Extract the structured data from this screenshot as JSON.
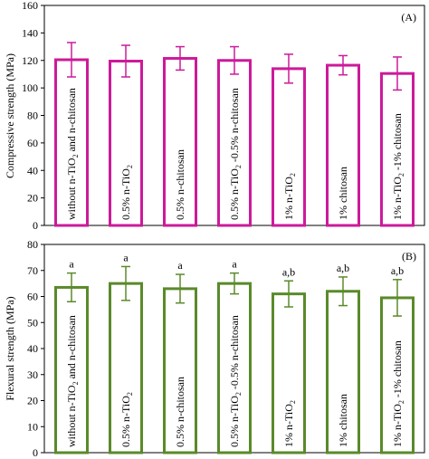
{
  "chart_data": [
    {
      "type": "bar",
      "panel_label": "(A)",
      "ylabel": "Compressive strength (MPa)",
      "ylim": [
        0,
        160
      ],
      "yticks": [
        0,
        20,
        40,
        60,
        80,
        100,
        120,
        140,
        160
      ],
      "grid": false,
      "bar_color": "#cc1a9a",
      "bar_fill": "#ffffff",
      "categories": [
        [
          "without n-TiO",
          "2",
          " and n-chitosan"
        ],
        [
          "0.5% n-TiO",
          "2",
          ""
        ],
        [
          "0.5% n-chitosan"
        ],
        [
          "0.5% n-TiO",
          "2",
          " -0.5% n-chitosan"
        ],
        [
          "1% n-TiO",
          "2",
          ""
        ],
        [
          "1% chitosan"
        ],
        [
          "1% n-TiO",
          "2",
          " -1% chitosan"
        ]
      ],
      "values": [
        120.5,
        119.5,
        121.5,
        120,
        114,
        116.5,
        110.5
      ],
      "errors": [
        12.5,
        11.5,
        8.5,
        10,
        10.5,
        7,
        12
      ],
      "annotations": []
    },
    {
      "type": "bar",
      "panel_label": "(B)",
      "ylabel": "Flexural strength (MPa)",
      "ylim": [
        0,
        80
      ],
      "yticks": [
        0,
        10,
        20,
        30,
        40,
        50,
        60,
        70,
        80
      ],
      "grid": false,
      "bar_color": "#5a8a2a",
      "bar_fill": "#ffffff",
      "categories": [
        [
          "without n-TiO",
          "2",
          " and n-chitosan"
        ],
        [
          "0.5% n-TiO",
          "2",
          ""
        ],
        [
          "0.5% n-chitosan"
        ],
        [
          "0.5% n-TiO",
          "2",
          " -0.5% n-chitosan"
        ],
        [
          "1% n-TiO",
          "2",
          ""
        ],
        [
          "1% chitosan"
        ],
        [
          "1% n-TiO",
          "2",
          " -1% chitosan"
        ]
      ],
      "values": [
        63.5,
        65,
        63,
        65,
        61,
        62,
        59.5
      ],
      "errors": [
        5.5,
        6.5,
        5.5,
        4,
        5,
        5.5,
        7
      ],
      "annotations": [
        "a",
        "a",
        "a",
        "a",
        "a,b",
        "a,b",
        "a,b"
      ]
    }
  ]
}
